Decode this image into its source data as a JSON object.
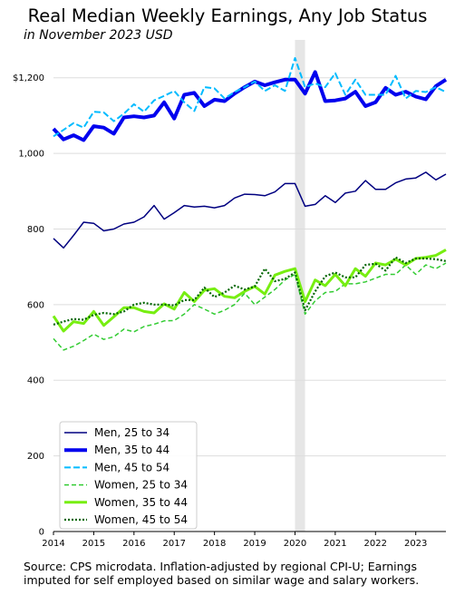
{
  "header": {
    "title": "Real Median Weekly Earnings, Any Job Status",
    "subtitle": "in November 2023 USD"
  },
  "footnote": "Source: CPS microdata. Inflation-adjusted by regional CPI-U; Earnings imputed for self employed based on similar wage and salary workers.",
  "chart_data": {
    "type": "line",
    "title": "Real Median Weekly Earnings, Any Job Status",
    "subtitle": "in November 2023 USD",
    "xlabel": "",
    "ylabel": "",
    "xlim": [
      2014,
      2023.75
    ],
    "ylim": [
      0,
      1300
    ],
    "x_ticks": [
      2014,
      2015,
      2016,
      2017,
      2018,
      2019,
      2020,
      2021,
      2022,
      2023
    ],
    "y_ticks": [
      0,
      200,
      400,
      600,
      800,
      1000,
      1200
    ],
    "y_tick_labels": [
      "0",
      "200",
      "400",
      "600",
      "800",
      "1,000",
      "$1,200"
    ],
    "grid": "horizontal",
    "legend_position": "bottom-left",
    "shaded_region": {
      "x_start": 2020.0,
      "x_end": 2020.25,
      "color": "#e6e6e6"
    },
    "x": [
      2014.0,
      2014.25,
      2014.5,
      2014.75,
      2015.0,
      2015.25,
      2015.5,
      2015.75,
      2016.0,
      2016.25,
      2016.5,
      2016.75,
      2017.0,
      2017.25,
      2017.5,
      2017.75,
      2018.0,
      2018.25,
      2018.5,
      2018.75,
      2019.0,
      2019.25,
      2019.5,
      2019.75,
      2020.0,
      2020.25,
      2020.5,
      2020.75,
      2021.0,
      2021.25,
      2021.5,
      2021.75,
      2022.0,
      2022.25,
      2022.5,
      2022.75,
      2023.0,
      2023.25,
      2023.5,
      2023.75
    ],
    "series": [
      {
        "name": "Men, 25 to 34",
        "color": "#000080",
        "width": 1.5,
        "dash": "",
        "values": [
          775,
          750,
          783,
          818,
          815,
          795,
          800,
          813,
          818,
          832,
          862,
          826,
          843,
          862,
          858,
          860,
          856,
          862,
          882,
          892,
          891,
          888,
          898,
          920,
          920,
          860,
          865,
          888,
          870,
          895,
          900,
          928,
          905,
          905,
          922,
          932,
          935,
          950,
          930,
          945
        ]
      },
      {
        "name": "Men, 35 to 44",
        "color": "#0000ee",
        "width": 4,
        "dash": "",
        "values": [
          1065,
          1037,
          1048,
          1035,
          1072,
          1068,
          1052,
          1095,
          1098,
          1095,
          1100,
          1135,
          1092,
          1155,
          1160,
          1125,
          1142,
          1138,
          1158,
          1175,
          1190,
          1180,
          1188,
          1195,
          1195,
          1158,
          1215,
          1138,
          1140,
          1145,
          1163,
          1125,
          1135,
          1173,
          1155,
          1163,
          1150,
          1143,
          1178,
          1195
        ]
      },
      {
        "name": "Men, 45 to 54",
        "color": "#00bbff",
        "width": 2,
        "dash": "7,3",
        "values": [
          1045,
          1062,
          1080,
          1068,
          1110,
          1108,
          1085,
          1105,
          1130,
          1110,
          1140,
          1152,
          1165,
          1135,
          1112,
          1175,
          1172,
          1145,
          1162,
          1175,
          1190,
          1165,
          1180,
          1165,
          1252,
          1175,
          1185,
          1175,
          1212,
          1155,
          1195,
          1155,
          1155,
          1155,
          1205,
          1145,
          1165,
          1162,
          1175,
          1162
        ]
      },
      {
        "name": "Women, 25 to 34",
        "color": "#33cc33",
        "width": 1.5,
        "dash": "5,3",
        "values": [
          510,
          480,
          490,
          505,
          522,
          508,
          515,
          535,
          528,
          542,
          548,
          557,
          558,
          575,
          600,
          588,
          575,
          585,
          600,
          630,
          600,
          620,
          640,
          665,
          680,
          575,
          610,
          632,
          635,
          655,
          655,
          660,
          670,
          680,
          680,
          705,
          680,
          705,
          695,
          710
        ]
      },
      {
        "name": "Women, 35 to 44",
        "color": "#77ee11",
        "width": 3,
        "dash": "",
        "values": [
          570,
          530,
          555,
          550,
          582,
          545,
          568,
          592,
          592,
          582,
          578,
          602,
          588,
          632,
          608,
          638,
          642,
          622,
          618,
          635,
          648,
          628,
          678,
          688,
          695,
          608,
          665,
          650,
          680,
          650,
          695,
          675,
          710,
          705,
          720,
          705,
          722,
          725,
          730,
          745
        ]
      },
      {
        "name": "Women, 45 to 54",
        "color": "#006600",
        "width": 2.2,
        "dash": "2,2",
        "values": [
          547,
          555,
          562,
          560,
          573,
          578,
          575,
          582,
          600,
          605,
          600,
          600,
          598,
          612,
          612,
          645,
          620,
          632,
          650,
          640,
          648,
          695,
          662,
          668,
          685,
          585,
          635,
          675,
          685,
          672,
          672,
          705,
          708,
          690,
          725,
          710,
          722,
          722,
          720,
          715
        ]
      }
    ]
  }
}
